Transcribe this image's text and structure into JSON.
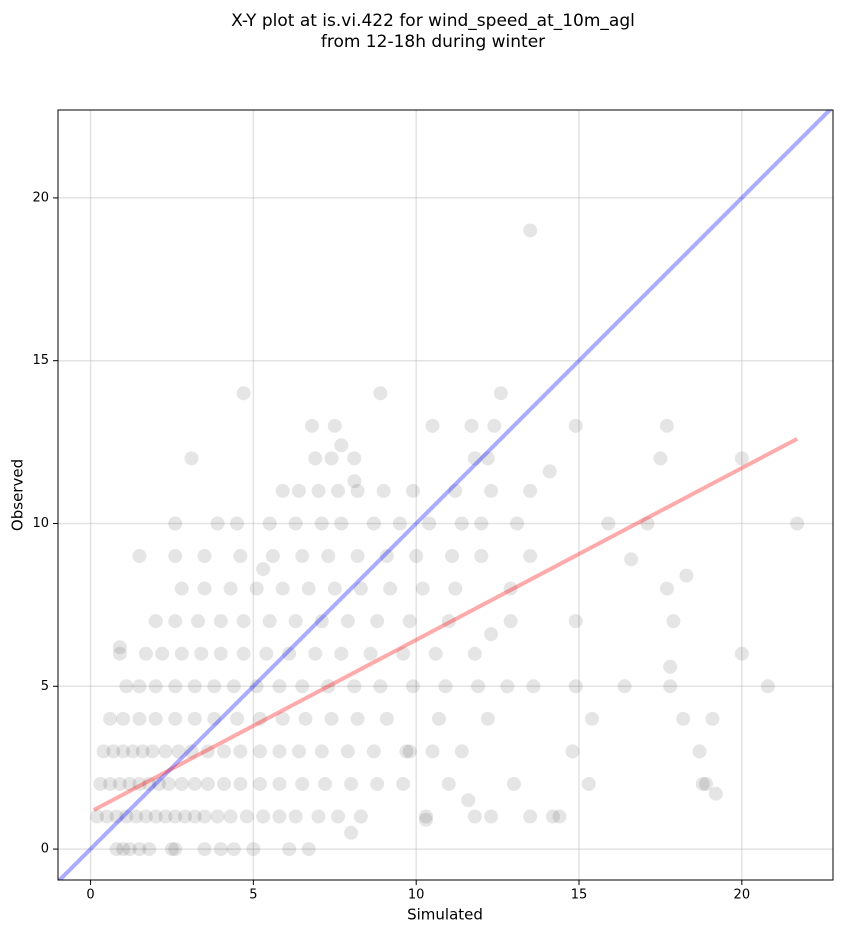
{
  "chart_data": {
    "type": "scatter",
    "title": [
      "X-Y plot at is.vi.422 for wind_speed_at_10m_agl",
      "from 12-18h during winter"
    ],
    "x_label": "Simulated",
    "y_label": "Observed",
    "xlim": [
      -1,
      22.8
    ],
    "ylim": [
      -0.95,
      22.7
    ],
    "xticks": [
      0,
      5,
      10,
      15,
      20
    ],
    "yticks": [
      0,
      5,
      10,
      15,
      20
    ],
    "grid": true,
    "color": "#000000",
    "x": [
      0.8,
      1.0,
      1.2,
      1.5,
      1.8,
      2.5,
      2.6,
      3.5,
      4.0,
      4.4,
      5.0,
      6.1,
      6.7,
      0.2,
      0.5,
      0.8,
      1.1,
      1.4,
      1.7,
      2.0,
      2.3,
      2.6,
      2.9,
      3.2,
      3.5,
      3.9,
      4.3,
      4.8,
      5.3,
      5.8,
      6.3,
      7.0,
      7.6,
      8.3,
      10.3,
      11.8,
      12.3,
      13.5,
      14.2,
      14.4,
      0.3,
      0.6,
      0.9,
      1.2,
      1.5,
      1.8,
      2.1,
      2.4,
      2.8,
      3.2,
      3.6,
      4.1,
      4.6,
      5.2,
      5.8,
      6.5,
      7.2,
      8.0,
      8.8,
      9.6,
      11.0,
      13.0,
      15.3,
      18.9,
      0.4,
      0.7,
      1.0,
      1.3,
      1.6,
      1.9,
      2.3,
      2.7,
      3.1,
      3.6,
      4.1,
      4.6,
      5.2,
      5.8,
      6.4,
      7.1,
      7.9,
      8.7,
      9.7,
      10.5,
      11.4,
      14.8,
      18.7,
      0.6,
      1.0,
      1.5,
      2.0,
      2.6,
      3.2,
      3.8,
      4.5,
      5.2,
      5.9,
      6.6,
      7.4,
      8.2,
      9.1,
      10.7,
      12.2,
      15.4,
      18.2,
      19.1,
      1.1,
      1.5,
      2.0,
      2.6,
      3.2,
      3.8,
      4.4,
      5.1,
      5.8,
      6.5,
      7.3,
      8.1,
      8.9,
      9.9,
      10.9,
      11.9,
      12.8,
      13.6,
      14.9,
      16.4,
      17.8,
      20.8,
      0.9,
      1.7,
      2.2,
      2.8,
      3.4,
      4.0,
      4.7,
      5.4,
      6.1,
      6.9,
      7.7,
      8.6,
      9.6,
      10.6,
      11.8,
      20.0,
      2.0,
      2.6,
      3.3,
      4.0,
      4.7,
      5.5,
      6.3,
      7.1,
      7.9,
      8.8,
      9.8,
      11.0,
      12.9,
      14.9,
      17.9,
      2.8,
      3.5,
      4.3,
      5.1,
      5.9,
      6.7,
      7.5,
      8.3,
      9.2,
      10.2,
      11.2,
      12.9,
      17.7,
      1.5,
      2.6,
      3.5,
      4.6,
      5.6,
      6.5,
      7.3,
      8.2,
      9.1,
      10.0,
      11.1,
      12.0,
      13.5,
      2.6,
      3.9,
      4.5,
      5.5,
      6.3,
      7.1,
      7.7,
      8.7,
      9.5,
      10.4,
      11.4,
      12.0,
      13.1,
      15.9,
      17.1,
      21.7,
      5.9,
      6.4,
      7.0,
      7.6,
      8.2,
      9.0,
      9.9,
      11.2,
      12.3,
      13.5,
      3.1,
      6.9,
      7.4,
      8.1,
      11.8,
      12.2,
      17.5,
      20.0,
      6.8,
      7.5,
      10.5,
      11.7,
      12.4,
      14.9,
      17.7,
      4.7,
      8.9,
      12.6,
      13.5,
      0.9,
      5.3,
      7.7,
      8.1,
      14.1,
      18.3,
      16.6,
      17.8,
      19.2,
      18.8,
      10.3,
      9.8,
      12.3,
      11.6,
      8.0
    ],
    "values": [
      0,
      0,
      0,
      0,
      0,
      0,
      0,
      0,
      0,
      0,
      0,
      0,
      0,
      1,
      1,
      1,
      1,
      1,
      1,
      1,
      1,
      1,
      1,
      1,
      1,
      1,
      1,
      1,
      1,
      1,
      1,
      1,
      1,
      1,
      1,
      1,
      1,
      1,
      1,
      1,
      2,
      2,
      2,
      2,
      2,
      2,
      2,
      2,
      2,
      2,
      2,
      2,
      2,
      2,
      2,
      2,
      2,
      2,
      2,
      2,
      2,
      2,
      2,
      2,
      3,
      3,
      3,
      3,
      3,
      3,
      3,
      3,
      3,
      3,
      3,
      3,
      3,
      3,
      3,
      3,
      3,
      3,
      3,
      3,
      3,
      3,
      3,
      4,
      4,
      4,
      4,
      4,
      4,
      4,
      4,
      4,
      4,
      4,
      4,
      4,
      4,
      4,
      4,
      4,
      4,
      4,
      5,
      5,
      5,
      5,
      5,
      5,
      5,
      5,
      5,
      5,
      5,
      5,
      5,
      5,
      5,
      5,
      5,
      5,
      5,
      5,
      5,
      5,
      6,
      6,
      6,
      6,
      6,
      6,
      6,
      6,
      6,
      6,
      6,
      6,
      6,
      6,
      6,
      6,
      7,
      7,
      7,
      7,
      7,
      7,
      7,
      7,
      7,
      7,
      7,
      7,
      7,
      7,
      7,
      8,
      8,
      8,
      8,
      8,
      8,
      8,
      8,
      8,
      8,
      8,
      8,
      8,
      9,
      9,
      9,
      9,
      9,
      9,
      9,
      9,
      9,
      9,
      9,
      9,
      9,
      10,
      10,
      10,
      10,
      10,
      10,
      10,
      10,
      10,
      10,
      10,
      10,
      10,
      10,
      10,
      10,
      11,
      11,
      11,
      11,
      11,
      11,
      11,
      11,
      11,
      11,
      12,
      12,
      12,
      12,
      12,
      12,
      12,
      12,
      13,
      13,
      13,
      13,
      13,
      13,
      13,
      14,
      14,
      14,
      19,
      6.2,
      8.6,
      12.4,
      11.3,
      11.6,
      8.4,
      8.9,
      5.6,
      1.7,
      2.0,
      0.9,
      3.0,
      6.6,
      1.5,
      0.5
    ],
    "lines": [
      {
        "color": "#0000ff",
        "x": [
          -1,
          22.8
        ],
        "values": [
          -1,
          22.8
        ]
      },
      {
        "color": "#ff0000",
        "x": [
          0.1,
          21.7
        ],
        "values": [
          1.2,
          12.6
        ]
      }
    ]
  }
}
